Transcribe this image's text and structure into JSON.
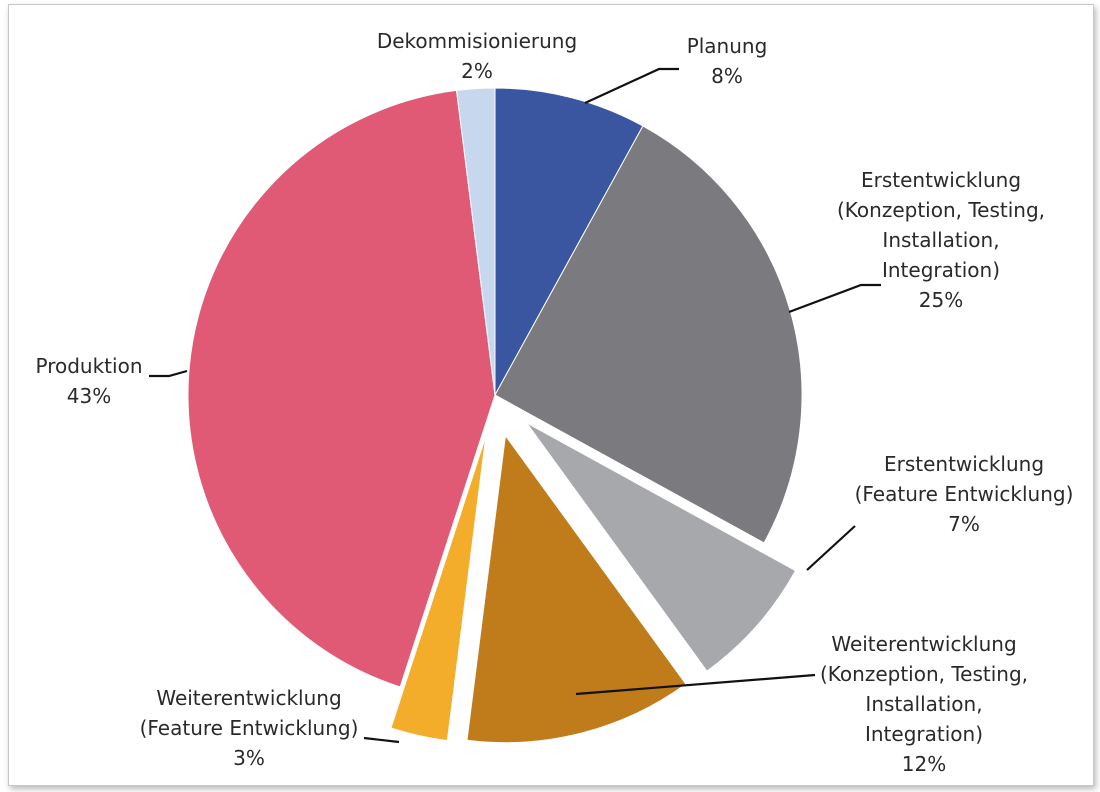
{
  "chart_data": {
    "type": "pie",
    "slices": [
      {
        "label": [
          "Planung"
        ],
        "pct_label": "8%",
        "value": 8,
        "color": "#3a56a0",
        "exploded": false
      },
      {
        "label": [
          "Erstentwicklung",
          "(Konzeption, Testing,",
          "Installation,",
          "Integration)"
        ],
        "pct_label": "25%",
        "value": 25,
        "color": "#7b7b7f",
        "exploded": false
      },
      {
        "label": [
          "Erstentwicklung",
          "(Feature Entwicklung)"
        ],
        "pct_label": "7%",
        "value": 7,
        "color": "#a7a8ab",
        "exploded": true
      },
      {
        "label": [
          "Weiterentwicklung",
          "(Konzeption, Testing,",
          "Installation,",
          "Integration)"
        ],
        "pct_label": "12%",
        "value": 12,
        "color": "#c07b1b",
        "exploded": true
      },
      {
        "label": [
          "Weiterentwicklung",
          "(Feature Entwicklung)"
        ],
        "pct_label": "3%",
        "value": 3,
        "color": "#f3ad2a",
        "exploded": true
      },
      {
        "label": [
          "Produktion"
        ],
        "pct_label": "43%",
        "value": 43,
        "color": "#e05a76",
        "exploded": false
      },
      {
        "label": [
          "Dekommisionierung"
        ],
        "pct_label": "2%",
        "value": 2,
        "color": "#c7d8ee",
        "exploded": false
      }
    ]
  }
}
